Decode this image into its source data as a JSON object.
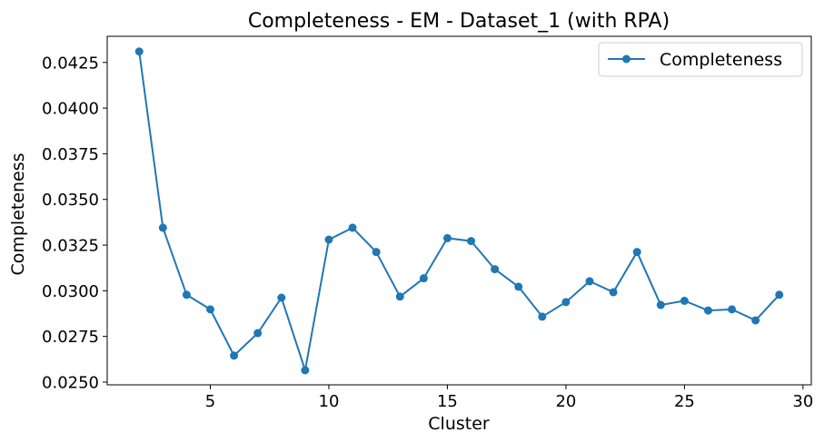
{
  "chart_data": {
    "type": "line",
    "title": "Completeness - EM - Dataset_1 (with RPA)",
    "xlabel": "Cluster",
    "ylabel": "Completeness",
    "xlim": [
      0.65,
      30.35
    ],
    "ylim": [
      0.02485,
      0.04393
    ],
    "x_ticks": [
      5,
      10,
      15,
      20,
      25,
      30
    ],
    "x_tick_labels": [
      "5",
      "10",
      "15",
      "20",
      "25",
      "30"
    ],
    "y_ticks": [
      0.025,
      0.0275,
      0.03,
      0.0325,
      0.035,
      0.0375,
      0.04,
      0.0425
    ],
    "y_tick_labels": [
      "0.0250",
      "0.0275",
      "0.0300",
      "0.0325",
      "0.0350",
      "0.0375",
      "0.0400",
      "0.0425"
    ],
    "grid": false,
    "legend_position": "top-right",
    "series": [
      {
        "name": "Completeness",
        "color": "#1f77b4",
        "marker": "circle",
        "x": [
          2,
          3,
          4,
          5,
          6,
          7,
          8,
          9,
          10,
          11,
          12,
          13,
          14,
          15,
          16,
          17,
          18,
          19,
          20,
          21,
          22,
          23,
          24,
          25,
          26,
          27,
          28,
          29
        ],
        "values": [
          0.0431,
          0.03345,
          0.02978,
          0.02898,
          0.02645,
          0.02768,
          0.02962,
          0.02565,
          0.0328,
          0.03345,
          0.03212,
          0.02968,
          0.03068,
          0.03288,
          0.03272,
          0.03118,
          0.03022,
          0.02858,
          0.02938,
          0.03052,
          0.02992,
          0.03212,
          0.02922,
          0.02945,
          0.02892,
          0.02898,
          0.02838,
          0.02978
        ]
      }
    ]
  }
}
